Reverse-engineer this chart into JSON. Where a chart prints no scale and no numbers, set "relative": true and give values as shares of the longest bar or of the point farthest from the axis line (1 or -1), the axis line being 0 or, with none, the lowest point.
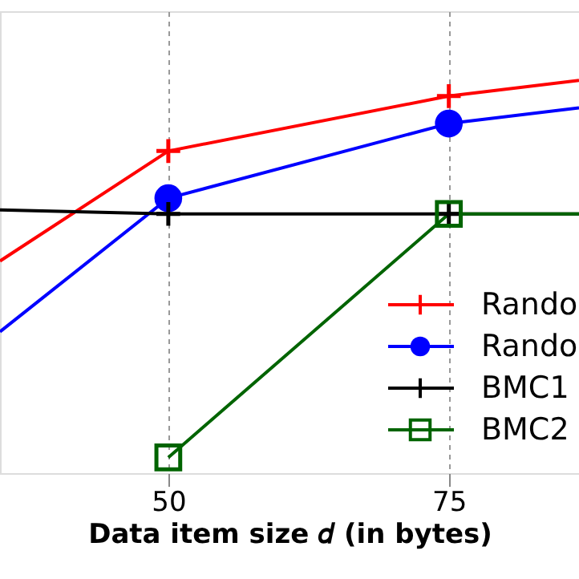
{
  "chart_data": {
    "type": "line",
    "xlabel": "Data item size 𝑑 (in bytes)",
    "relative": true,
    "x": [
      35,
      50,
      75,
      86.6
    ],
    "xlim": [
      35,
      86.6
    ],
    "xticks": [
      50,
      75
    ],
    "grid": "x",
    "legend": "bottom right",
    "line_style": "solid",
    "series": [
      {
        "name": "Rando",
        "color": "#ff0000",
        "marker": "cross",
        "values": [
          0.54,
          0.82,
          0.96,
          1.0
        ]
      },
      {
        "name": "Rando",
        "color": "#0000ff",
        "marker": "circle",
        "values": [
          0.36,
          0.7,
          0.89,
          0.93
        ]
      },
      {
        "name": "BMC1",
        "color": "#000000",
        "marker": "cross",
        "values": [
          0.67,
          0.66,
          0.66,
          0.66
        ]
      },
      {
        "name": "BMC2",
        "color": "#006400",
        "marker": "square",
        "values": [
          null,
          0.04,
          0.66,
          0.66
        ]
      }
    ]
  }
}
